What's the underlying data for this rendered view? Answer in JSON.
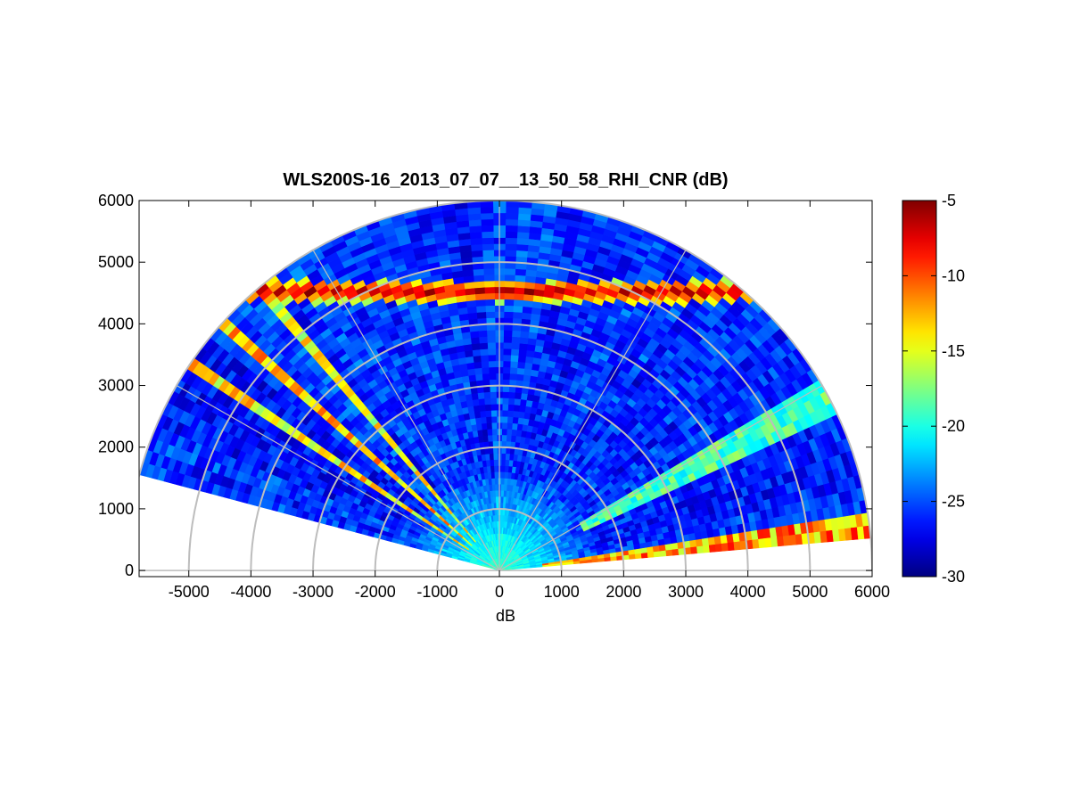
{
  "chart_data": {
    "type": "heatmap",
    "subtype": "polar-rhi-sector",
    "title": "WLS200S-16_2013_07_07__13_50_58_RHI_CNR (dB)",
    "xlabel": "dB",
    "ylabel": "",
    "xlim": [
      -5800,
      6000
    ],
    "ylim": [
      -100,
      6000
    ],
    "x_ticks": [
      -5000,
      -4000,
      -3000,
      -2000,
      -1000,
      0,
      1000,
      2000,
      3000,
      4000,
      5000,
      6000
    ],
    "y_ticks": [
      0,
      1000,
      2000,
      3000,
      4000,
      5000,
      6000
    ],
    "polar_grid": {
      "range_rings": [
        1000,
        2000,
        3000,
        4000,
        5000,
        6000
      ],
      "spoke_angles_deg": [
        0,
        30,
        60,
        90,
        120,
        150,
        180
      ],
      "color": "#bdbdbd"
    },
    "scan": {
      "elevation_deg": [
        5,
        165
      ],
      "max_range": 6000,
      "range_gate": 100,
      "beam_count": 80
    },
    "colorbar": {
      "min": -30,
      "max": -5,
      "ticks": [
        -5,
        -10,
        -15,
        -20,
        -25,
        -30
      ],
      "colormap": "jet"
    },
    "features": [
      {
        "name": "near-field high CNR",
        "range": [
          0,
          1600
        ],
        "value": -19
      },
      {
        "name": "background",
        "value": -26
      },
      {
        "name": "aerosol layer",
        "height": [
          4350,
          4700
        ],
        "value": -6
      },
      {
        "name": "low-elevation streak",
        "elevation_deg": [
          145,
          147
        ],
        "value": -14
      },
      {
        "name": "low-elevation streak",
        "elevation_deg": [
          137,
          139
        ],
        "value": -13
      },
      {
        "name": "low-elevation streak",
        "elevation_deg": [
          129,
          131
        ],
        "value": -15
      },
      {
        "name": "plume",
        "elevation_deg": [
          26,
          30
        ],
        "value": -19
      },
      {
        "name": "surface return",
        "elevation_deg": [
          5,
          8
        ],
        "value": -12
      }
    ]
  }
}
